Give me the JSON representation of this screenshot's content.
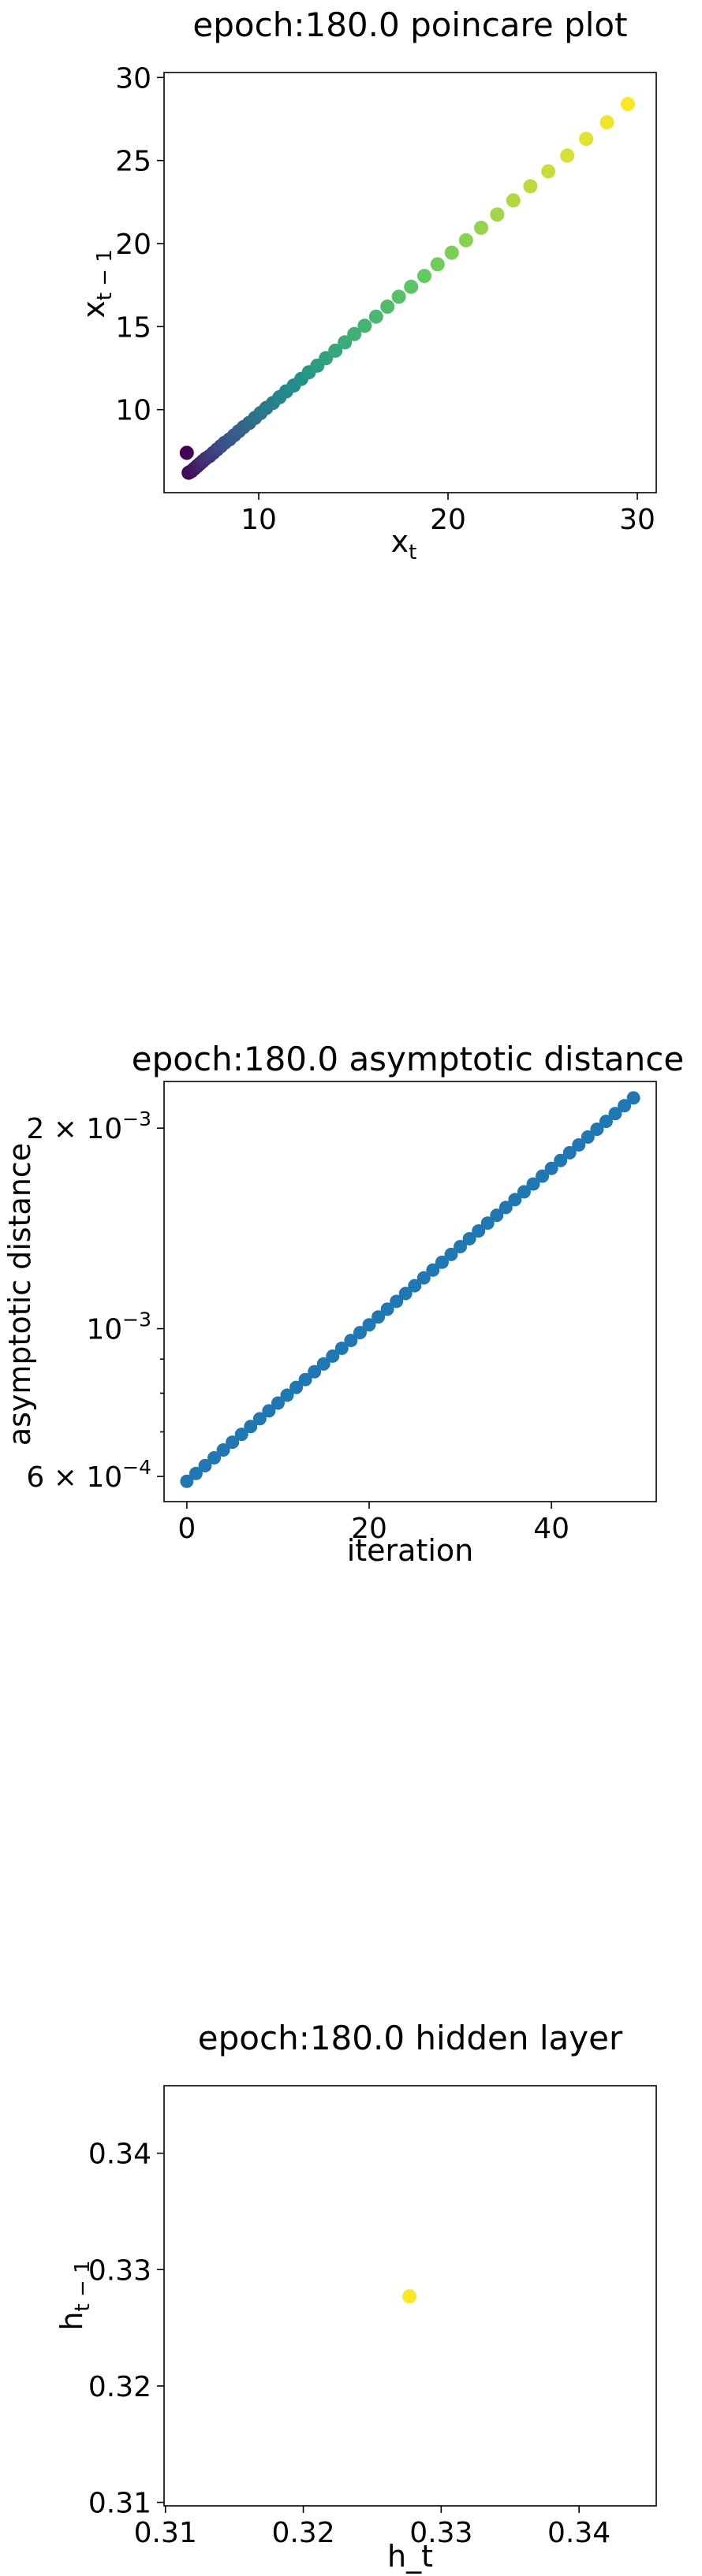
{
  "chart_data": [
    {
      "type": "scatter",
      "title": "epoch:180.0 poincare plot",
      "xlabel": "x",
      "xlabel_sub": "t",
      "ylabel": "x",
      "ylabel_sub": "t − 1",
      "xlim": [
        5,
        31
      ],
      "ylim": [
        5,
        30.3
      ],
      "xticks": [
        10,
        20,
        30
      ],
      "yticks": [
        10,
        15,
        20,
        25,
        30
      ],
      "colormap": [
        "#440154",
        "#3b528b",
        "#21918c",
        "#5ec962",
        "#fde725"
      ],
      "points": [
        [
          6.2,
          7.4
        ],
        [
          6.3,
          6.2
        ],
        [
          6.45,
          6.3
        ],
        [
          6.6,
          6.45
        ],
        [
          6.75,
          6.6
        ],
        [
          6.9,
          6.75
        ],
        [
          7.05,
          6.9
        ],
        [
          7.2,
          7.05
        ],
        [
          7.4,
          7.2
        ],
        [
          7.6,
          7.4
        ],
        [
          7.8,
          7.6
        ],
        [
          8.0,
          7.8
        ],
        [
          8.2,
          8.0
        ],
        [
          8.45,
          8.2
        ],
        [
          8.7,
          8.45
        ],
        [
          8.95,
          8.7
        ],
        [
          9.2,
          8.95
        ],
        [
          9.5,
          9.2
        ],
        [
          9.8,
          9.5
        ],
        [
          10.1,
          9.8
        ],
        [
          10.4,
          10.1
        ],
        [
          10.75,
          10.4
        ],
        [
          11.1,
          10.75
        ],
        [
          11.45,
          11.1
        ],
        [
          11.85,
          11.45
        ],
        [
          12.25,
          11.85
        ],
        [
          12.65,
          12.25
        ],
        [
          13.1,
          12.65
        ],
        [
          13.55,
          13.1
        ],
        [
          14.05,
          13.55
        ],
        [
          14.55,
          14.05
        ],
        [
          15.05,
          14.55
        ],
        [
          15.6,
          15.05
        ],
        [
          16.2,
          15.6
        ],
        [
          16.8,
          16.2
        ],
        [
          17.4,
          16.8
        ],
        [
          18.05,
          17.4
        ],
        [
          18.75,
          18.05
        ],
        [
          19.45,
          18.75
        ],
        [
          20.2,
          19.45
        ],
        [
          20.95,
          20.2
        ],
        [
          21.75,
          20.95
        ],
        [
          22.6,
          21.75
        ],
        [
          23.45,
          22.6
        ],
        [
          24.35,
          23.45
        ],
        [
          25.3,
          24.35
        ],
        [
          26.3,
          25.3
        ],
        [
          27.3,
          26.3
        ],
        [
          28.4,
          27.3
        ],
        [
          29.5,
          28.4
        ]
      ]
    },
    {
      "type": "scatter",
      "title": "epoch:180.0 asymptotic distance",
      "xlabel": "iteration",
      "ylabel": "asymptotic distance",
      "yscale": "log",
      "xlim": [
        -2.5,
        51.5
      ],
      "ylim": [
        0.00055,
        0.00235
      ],
      "xticks": [
        0,
        20,
        40
      ],
      "yticks": [
        {
          "value": 0.0006,
          "mantissa": "6 × 10",
          "exponent": "−4"
        },
        {
          "value": 0.001,
          "mantissa": "10",
          "exponent": "−3"
        },
        {
          "value": 0.002,
          "mantissa": "2 × 10",
          "exponent": "−3"
        }
      ],
      "minor_yticks": [
        0.0007,
        0.0008,
        0.0009
      ],
      "color": "#1f77b4",
      "y_start": 0.00059,
      "y_end": 0.00222,
      "x": [
        0,
        1,
        2,
        3,
        4,
        5,
        6,
        7,
        8,
        9,
        10,
        11,
        12,
        13,
        14,
        15,
        16,
        17,
        18,
        19,
        20,
        21,
        22,
        23,
        24,
        25,
        26,
        27,
        28,
        29,
        30,
        31,
        32,
        33,
        34,
        35,
        36,
        37,
        38,
        39,
        40,
        41,
        42,
        43,
        44,
        45,
        46,
        47,
        48,
        49
      ]
    },
    {
      "type": "scatter",
      "title": "epoch:180.0 hidden layer",
      "xlabel": "h_t",
      "ylabel": "h",
      "ylabel_sub": "t − 1",
      "xlim": [
        0.3099,
        0.3456
      ],
      "ylim": [
        0.3097,
        0.3458
      ],
      "xticks": [
        0.31,
        0.32,
        0.33,
        0.34
      ],
      "yticks": [
        0.31,
        0.32,
        0.33,
        0.34
      ],
      "color": "#fde725",
      "points": [
        [
          0.3277,
          0.3277
        ]
      ]
    }
  ]
}
